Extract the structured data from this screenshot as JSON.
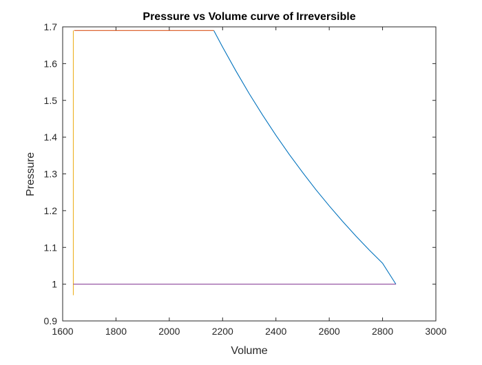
{
  "chart_data": {
    "type": "line",
    "title": "Pressure vs Volume curve of Irreversible",
    "xlabel": "Volume",
    "ylabel": "Pressure",
    "xlim": [
      1600,
      3000
    ],
    "ylim": [
      0.9,
      1.7
    ],
    "x_ticks": [
      1600,
      1800,
      2000,
      2200,
      2400,
      2600,
      2800,
      3000
    ],
    "y_ticks": [
      0.9,
      1,
      1.1,
      1.2,
      1.3,
      1.4,
      1.5,
      1.6,
      1.7
    ],
    "x_tick_labels": [
      "1600",
      "1800",
      "2000",
      "2200",
      "2400",
      "2600",
      "2800",
      "3000"
    ],
    "y_tick_labels": [
      "0.9",
      "1",
      "1.1",
      "1.2",
      "1.3",
      "1.4",
      "1.5",
      "1.6",
      "1.7"
    ],
    "grid": false,
    "box": true,
    "series": [
      {
        "color": "#0072BD",
        "x": [
          2167,
          2200,
          2250,
          2300,
          2350,
          2400,
          2450,
          2500,
          2550,
          2600,
          2650,
          2700,
          2750,
          2800,
          2850
        ],
        "y": [
          1.69,
          1.645,
          1.58,
          1.518,
          1.46,
          1.405,
          1.353,
          1.304,
          1.257,
          1.213,
          1.171,
          1.131,
          1.093,
          1.057,
          1.0
        ]
      },
      {
        "color": "#D95319",
        "x": [
          1643,
          2167
        ],
        "y": [
          1.69,
          1.69
        ]
      },
      {
        "color": "#EDB120",
        "x": [
          1640,
          1640
        ],
        "y": [
          0.97,
          1.69
        ]
      },
      {
        "color": "#7E2F8E",
        "x": [
          1640,
          2850
        ],
        "y": [
          1.0,
          1.0
        ]
      }
    ]
  }
}
